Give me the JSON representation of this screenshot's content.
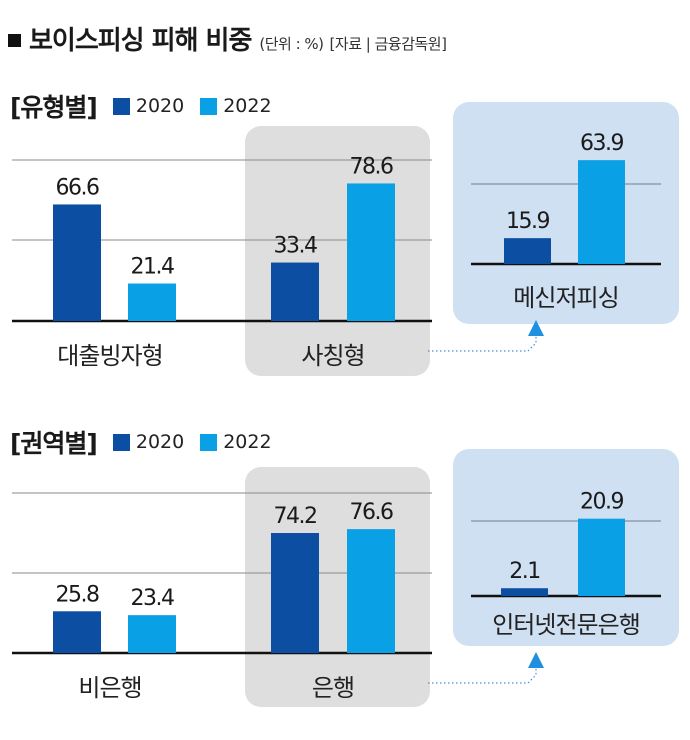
{
  "title": "보이스피싱 피해 비중",
  "unit": "(단위 : %)",
  "source": "[자료 | 금융감독원]",
  "colors": {
    "y2020": "#0b4ea2",
    "y2022": "#0aa0e6",
    "highlight_panel": "#dedede",
    "inset_panel": "#cfe0f3"
  },
  "legend": [
    "2020",
    "2022"
  ],
  "chart_data": [
    {
      "type": "bar",
      "title": "[유형별]",
      "categories": [
        "대출빙자형",
        "사칭형"
      ],
      "series": [
        {
          "name": "2020",
          "values": [
            66.6,
            33.4
          ]
        },
        {
          "name": "2022",
          "values": [
            21.4,
            78.6
          ]
        }
      ],
      "highlighted_category": "사칭형",
      "inset": {
        "category": "메신저피싱",
        "parent_category": "사칭형",
        "series": [
          {
            "name": "2020",
            "values": [
              15.9
            ]
          },
          {
            "name": "2022",
            "values": [
              63.9
            ]
          }
        ]
      }
    },
    {
      "type": "bar",
      "title": "[권역별]",
      "categories": [
        "비은행",
        "은행"
      ],
      "series": [
        {
          "name": "2020",
          "values": [
            25.8,
            74.2
          ]
        },
        {
          "name": "2022",
          "values": [
            23.4,
            76.6
          ]
        }
      ],
      "highlighted_category": "은행",
      "inset": {
        "category": "인터넷전문은행",
        "parent_category": "은행",
        "series": [
          {
            "name": "2020",
            "values": [
              2.1
            ]
          },
          {
            "name": "2022",
            "values": [
              20.9
            ]
          }
        ]
      }
    }
  ]
}
